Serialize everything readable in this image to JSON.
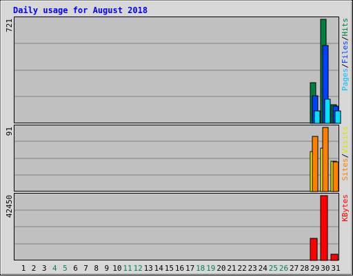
{
  "chart_data": {
    "type": "bar",
    "title": "Daily usage for August 2018",
    "categories": [
      "1",
      "2",
      "3",
      "4",
      "5",
      "6",
      "7",
      "8",
      "9",
      "10",
      "11",
      "12",
      "13",
      "14",
      "15",
      "16",
      "17",
      "18",
      "19",
      "20",
      "21",
      "22",
      "23",
      "24",
      "25",
      "26",
      "27",
      "28",
      "29",
      "30",
      "31"
    ],
    "weekend_days": [
      "4",
      "5",
      "11",
      "12",
      "18",
      "19",
      "25",
      "26"
    ],
    "panels": [
      {
        "id": "hits",
        "max_label": "721",
        "ylim": [
          0,
          721
        ],
        "legend": [
          "Pages",
          "Files",
          "Hits"
        ],
        "series": [
          {
            "name": "Hits",
            "color": "#008040",
            "values": [
              0,
              0,
              0,
              0,
              0,
              0,
              0,
              0,
              0,
              0,
              0,
              0,
              0,
              0,
              0,
              0,
              0,
              0,
              0,
              0,
              0,
              0,
              0,
              0,
              0,
              0,
              0,
              0,
              280,
              721,
              130
            ]
          },
          {
            "name": "Files",
            "color": "#0040ff",
            "values": [
              0,
              0,
              0,
              0,
              0,
              0,
              0,
              0,
              0,
              0,
              0,
              0,
              0,
              0,
              0,
              0,
              0,
              0,
              0,
              0,
              0,
              0,
              0,
              0,
              0,
              0,
              0,
              0,
              190,
              540,
              120
            ]
          },
          {
            "name": "Pages",
            "color": "#00e0ff",
            "values": [
              0,
              0,
              0,
              0,
              0,
              0,
              0,
              0,
              0,
              0,
              0,
              0,
              0,
              0,
              0,
              0,
              0,
              0,
              0,
              0,
              0,
              0,
              0,
              0,
              0,
              0,
              0,
              0,
              85,
              165,
              85
            ]
          }
        ]
      },
      {
        "id": "visits",
        "max_label": "91",
        "ylim": [
          0,
          91
        ],
        "legend": [
          "Sites",
          "Visits"
        ],
        "series": [
          {
            "name": "Visits",
            "color": "#ffff00",
            "values": [
              0,
              0,
              0,
              0,
              0,
              0,
              0,
              0,
              0,
              0,
              0,
              0,
              0,
              0,
              0,
              0,
              0,
              0,
              0,
              0,
              0,
              0,
              0,
              0,
              0,
              0,
              0,
              0,
              57,
              62,
              43
            ]
          },
          {
            "name": "Sites",
            "color": "#ff8000",
            "values": [
              0,
              0,
              0,
              0,
              0,
              0,
              0,
              0,
              0,
              0,
              0,
              0,
              0,
              0,
              0,
              0,
              0,
              0,
              0,
              0,
              0,
              0,
              0,
              0,
              0,
              0,
              0,
              0,
              78,
              91,
              42
            ]
          }
        ]
      },
      {
        "id": "kbytes",
        "max_label": "42450",
        "ylim": [
          0,
          42450
        ],
        "legend": [
          "KBytes"
        ],
        "series": [
          {
            "name": "KBytes",
            "color": "#ff0000",
            "values": [
              0,
              0,
              0,
              0,
              0,
              0,
              0,
              0,
              0,
              0,
              0,
              0,
              0,
              0,
              0,
              0,
              0,
              0,
              0,
              0,
              0,
              0,
              0,
              0,
              0,
              0,
              0,
              0,
              14500,
              42450,
              4000
            ]
          }
        ]
      }
    ],
    "colors": {
      "title": "#0000ff",
      "weekday_label": "#000000",
      "weekend_label": "#00805c",
      "plot_bg": "#c0c0c0",
      "frame_bg": "#d7d7d7",
      "grid": "#808080",
      "legend_pages": "#00c0ff",
      "legend_files": "#0040ff",
      "legend_hits": "#008040",
      "legend_sites": "#ff8000",
      "legend_visits": "#e0e000",
      "legend_kbytes": "#ff0000"
    }
  }
}
